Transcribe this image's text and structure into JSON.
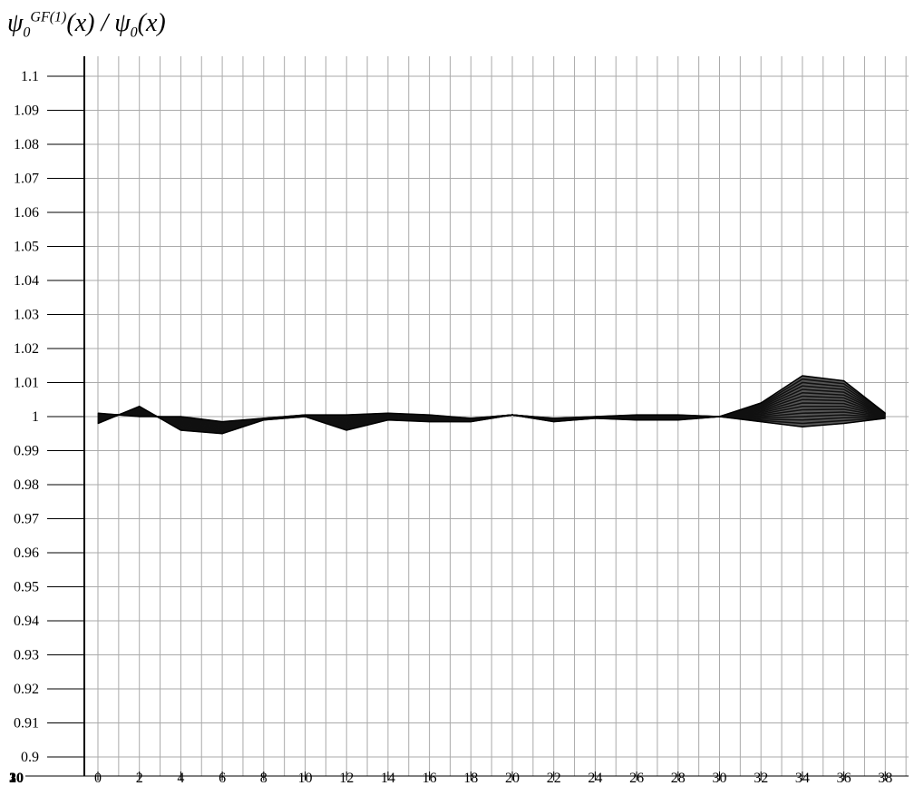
{
  "chart_data": {
    "type": "area",
    "title": "ψ0^GF(1)(x) / ψ0(x)",
    "title_parts": {
      "psi": "ψ",
      "sub": "0",
      "sup": "GF(1)",
      "mid": "(x) / ",
      "psi2": "ψ",
      "sub2": "0",
      "end": "(x)"
    },
    "xlabel": "",
    "ylabel": "",
    "xlim": [
      -1,
      39
    ],
    "ylim": [
      0.9,
      1.1
    ],
    "x_ticks": [
      0,
      2,
      4,
      6,
      8,
      10,
      12,
      14,
      16,
      18,
      20,
      22,
      24,
      26,
      28,
      30,
      32,
      34,
      36,
      38
    ],
    "y_ticks": [
      0.9,
      0.91,
      0.92,
      0.93,
      0.94,
      0.95,
      0.96,
      0.97,
      0.98,
      0.99,
      1,
      1.01,
      1.02,
      1.03,
      1.04,
      1.05,
      1.06,
      1.07,
      1.08,
      1.09,
      1.1
    ],
    "y_tick_labels": [
      "0.9",
      "0.91",
      "0.92",
      "0.93",
      "0.94",
      "0.95",
      "0.96",
      "0.97",
      "0.98",
      "0.99",
      "1",
      "1.01",
      "1.02",
      "1.03",
      "1.04",
      "1.05",
      "1.06",
      "1.07",
      "1.08",
      "1.09",
      "1.1"
    ],
    "corner_labels": [
      "10",
      "20",
      "30"
    ],
    "grid": true,
    "x": [
      0,
      2,
      4,
      6,
      8,
      10,
      12,
      14,
      16,
      18,
      20,
      22,
      24,
      26,
      28,
      30,
      32,
      34,
      36,
      38
    ],
    "series": [
      {
        "values": [
          0.998,
          1.003,
          0.996,
          0.995,
          0.999,
          1.0,
          0.996,
          0.999,
          0.9985,
          0.9985,
          1.0005,
          0.9985,
          0.9995,
          0.999,
          0.999,
          1.0,
          0.9985,
          0.997,
          0.998,
          0.9995
        ]
      },
      {
        "values": [
          1.001,
          1.0,
          1.0,
          0.9985,
          0.9995,
          1.0005,
          1.0005,
          1.001,
          1.0005,
          0.9995,
          1.0005,
          0.9995,
          1.0,
          1.0005,
          1.0005,
          1.0,
          1.004,
          1.012,
          1.0105,
          1.001
        ]
      }
    ],
    "colors": {
      "fill": "#555555",
      "dark": "#111111",
      "grid": "#aaaaaa",
      "axis": "#000000"
    }
  }
}
